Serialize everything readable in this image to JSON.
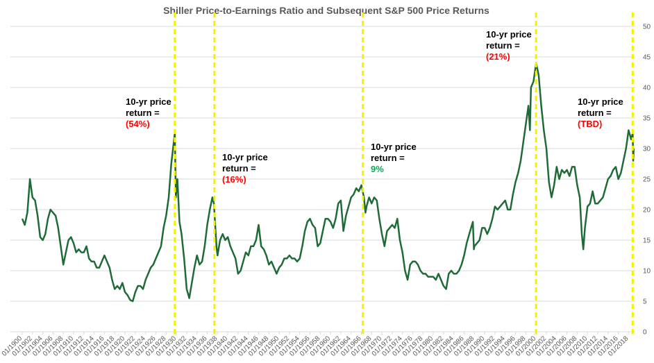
{
  "chart_data": {
    "type": "line",
    "title": "Shiller Price-to-Earnings Ratio and Subsequent S&P 500 Price Returns",
    "series": [
      {
        "name": "Shiller P/E",
        "color": "#1e6b38",
        "x": [
          1900,
          1900.5,
          1901,
          1901.5,
          1902,
          1902.5,
          1903,
          1903.5,
          1904,
          1904.5,
          1905,
          1905.5,
          1906,
          1906.5,
          1907,
          1907.5,
          1908,
          1908.5,
          1909,
          1909.5,
          1910,
          1910.5,
          1911,
          1911.5,
          1912,
          1912.5,
          1913,
          1913.5,
          1914,
          1914.5,
          1915,
          1915.5,
          1916,
          1916.5,
          1917,
          1917.5,
          1918,
          1918.5,
          1919,
          1919.5,
          1920,
          1920.5,
          1921,
          1921.5,
          1922,
          1922.5,
          1923,
          1923.5,
          1924,
          1924.5,
          1925,
          1925.5,
          1926,
          1926.5,
          1927,
          1927.5,
          1928,
          1928.5,
          1929,
          1929.7,
          1929.9,
          1930.2,
          1930.6,
          1931,
          1931.5,
          1932,
          1932.5,
          1933,
          1933.5,
          1934,
          1934.5,
          1935,
          1935.5,
          1936,
          1936.5,
          1937,
          1937.3,
          1937.8,
          1938,
          1938.5,
          1939,
          1939.5,
          1940,
          1940.5,
          1941,
          1941.5,
          1942,
          1942.5,
          1943,
          1943.5,
          1944,
          1944.5,
          1945,
          1945.5,
          1946,
          1946.5,
          1947,
          1947.5,
          1948,
          1948.5,
          1949,
          1949.5,
          1950,
          1950.5,
          1951,
          1951.5,
          1952,
          1952.5,
          1953,
          1953.5,
          1954,
          1954.5,
          1955,
          1955.5,
          1956,
          1956.5,
          1957,
          1957.5,
          1958,
          1958.5,
          1959,
          1959.5,
          1960,
          1960.5,
          1961,
          1961.5,
          1962,
          1962.5,
          1963,
          1963.5,
          1964,
          1964.5,
          1965,
          1965.5,
          1966,
          1966.5,
          1966.8,
          1967,
          1967.5,
          1968,
          1968.5,
          1969,
          1969.5,
          1970,
          1970.5,
          1971,
          1971.5,
          1972,
          1972.5,
          1973,
          1973.5,
          1974,
          1974.5,
          1975,
          1975.5,
          1976,
          1976.5,
          1977,
          1977.5,
          1978,
          1978.5,
          1979,
          1979.5,
          1980,
          1980.5,
          1981,
          1981.5,
          1982,
          1982.5,
          1983,
          1983.5,
          1984,
          1984.5,
          1985,
          1985.5,
          1986,
          1986.5,
          1987,
          1987.7,
          1987.9,
          1988,
          1988.5,
          1989,
          1989.5,
          1990,
          1990.5,
          1991,
          1991.5,
          1992,
          1992.5,
          1993,
          1993.5,
          1994,
          1994.5,
          1995,
          1995.5,
          1996,
          1996.5,
          1997,
          1997.5,
          1998,
          1998.5,
          1998.8,
          1999,
          1999.5,
          2000,
          2000.5,
          2001,
          2001.5,
          2002,
          2002.5,
          2003,
          2003.5,
          2004,
          2004.5,
          2005,
          2005.5,
          2006,
          2006.5,
          2007,
          2007.5,
          2008,
          2008.5,
          2008.9,
          2009.2,
          2009.5,
          2010,
          2010.5,
          2011,
          2011.5,
          2012,
          2012.5,
          2013,
          2013.5,
          2014,
          2014.5,
          2015,
          2015.5,
          2016,
          2016.5,
          2017,
          2017.5,
          2018,
          2018.5,
          2018.8,
          2018.9,
          2019
        ],
        "values": [
          18.5,
          17.5,
          19.5,
          25,
          22,
          21.5,
          19,
          15.5,
          15,
          16,
          18.5,
          20,
          19.5,
          19,
          17,
          14,
          11,
          13,
          15,
          15.5,
          14.5,
          13,
          13.5,
          13,
          13,
          14,
          12,
          11.5,
          11.5,
          10.5,
          10.5,
          11.5,
          12.5,
          11.5,
          10.5,
          8.5,
          7,
          7.5,
          7,
          8,
          6.5,
          6,
          5.2,
          5,
          6.5,
          7.5,
          7.5,
          7,
          8.5,
          9.5,
          10.5,
          11,
          12,
          13,
          14,
          17,
          19,
          22,
          27.5,
          32.5,
          22,
          25,
          18,
          16,
          12,
          7,
          5.5,
          8,
          10.5,
          12.5,
          11,
          11.5,
          14,
          17.5,
          20,
          22,
          21,
          14,
          12.5,
          15,
          16,
          15,
          15.5,
          14,
          13,
          12,
          9.5,
          10,
          11.5,
          13,
          12.5,
          14,
          14,
          15,
          17.5,
          14,
          13.5,
          12.5,
          11,
          11.5,
          10.5,
          9.5,
          10.5,
          11,
          12,
          12,
          12.5,
          12,
          12,
          11.5,
          12,
          14,
          16.5,
          18,
          18.5,
          17.5,
          17,
          14,
          14.5,
          16.5,
          18.5,
          18.5,
          18,
          17,
          18.5,
          21,
          21.5,
          16.5,
          19,
          20.5,
          22,
          22.5,
          23.5,
          23,
          24,
          22,
          19.5,
          20.5,
          22,
          21,
          22,
          21.5,
          18.5,
          16,
          14,
          16.5,
          17,
          17.5,
          17,
          18.5,
          15,
          13,
          10,
          8.5,
          11,
          11.5,
          11.5,
          11,
          10,
          9.5,
          9.5,
          9,
          9,
          9,
          8.5,
          9.5,
          8.5,
          7.5,
          7,
          9.5,
          10,
          9.5,
          9.5,
          10,
          11,
          12.5,
          14.5,
          16,
          18,
          13.5,
          14,
          14.5,
          15,
          17,
          17,
          16,
          17,
          18.5,
          20.5,
          20,
          20.5,
          21,
          21.5,
          20,
          20,
          22.5,
          24.5,
          26,
          28,
          31,
          34,
          37,
          33,
          40,
          41,
          44,
          42,
          37,
          33,
          30,
          24.5,
          22,
          24,
          27,
          25,
          26.5,
          26,
          26.5,
          25.5,
          27,
          27,
          24,
          22,
          16,
          13.5,
          17,
          20.5,
          21,
          23,
          21,
          21,
          21.5,
          22,
          23.5,
          25,
          25.5,
          26.5,
          27,
          25,
          26,
          28,
          30,
          33,
          31.5,
          32.5,
          28,
          30
        ]
      }
    ],
    "xlim": [
      1897.7,
      2019.3
    ],
    "xticks": [
      {
        "value": 1900,
        "label": "01/1900"
      },
      {
        "value": 1902,
        "label": "01/1902"
      },
      {
        "value": 1904,
        "label": "01/1904"
      },
      {
        "value": 1906,
        "label": "01/1906"
      },
      {
        "value": 1908,
        "label": "01/1908"
      },
      {
        "value": 1910,
        "label": "01/1910"
      },
      {
        "value": 1912,
        "label": "01/1912"
      },
      {
        "value": 1914,
        "label": "01/1914"
      },
      {
        "value": 1916,
        "label": "01/1916"
      },
      {
        "value": 1918,
        "label": "01/1918"
      },
      {
        "value": 1920,
        "label": "01/1920"
      },
      {
        "value": 1922,
        "label": "01/1922"
      },
      {
        "value": 1924,
        "label": "01/1924"
      },
      {
        "value": 1926,
        "label": "01/1926"
      },
      {
        "value": 1928,
        "label": "01/1928"
      },
      {
        "value": 1930,
        "label": "01/1930"
      },
      {
        "value": 1932,
        "label": "01/1932"
      },
      {
        "value": 1934,
        "label": "01/1934"
      },
      {
        "value": 1936,
        "label": "01/1936"
      },
      {
        "value": 1938,
        "label": "01/1938"
      },
      {
        "value": 1940,
        "label": "01/1940"
      },
      {
        "value": 1942,
        "label": "01/1942"
      },
      {
        "value": 1944,
        "label": "01/1944"
      },
      {
        "value": 1946,
        "label": "01/1946"
      },
      {
        "value": 1948,
        "label": "01/1948"
      },
      {
        "value": 1950,
        "label": "01/1950"
      },
      {
        "value": 1952,
        "label": "01/1952"
      },
      {
        "value": 1954,
        "label": "01/1954"
      },
      {
        "value": 1956,
        "label": "01/1956"
      },
      {
        "value": 1958,
        "label": "01/1958"
      },
      {
        "value": 1960,
        "label": "01/1960"
      },
      {
        "value": 1962,
        "label": "01/1962"
      },
      {
        "value": 1964,
        "label": "01/1964"
      },
      {
        "value": 1966,
        "label": "01/1966"
      },
      {
        "value": 1968,
        "label": "01/1968"
      },
      {
        "value": 1970,
        "label": "01/1970"
      },
      {
        "value": 1972,
        "label": "01/1972"
      },
      {
        "value": 1974,
        "label": "01/1974"
      },
      {
        "value": 1976,
        "label": "01/1976"
      },
      {
        "value": 1978,
        "label": "01/1978"
      },
      {
        "value": 1980,
        "label": "01/1980"
      },
      {
        "value": 1982,
        "label": "01/1982"
      },
      {
        "value": 1984,
        "label": "01/1984"
      },
      {
        "value": 1986,
        "label": "01/1986"
      },
      {
        "value": 1988,
        "label": "01/1988"
      },
      {
        "value": 1990,
        "label": "01/1990"
      },
      {
        "value": 1992,
        "label": "01/1992"
      },
      {
        "value": 1994,
        "label": "01/1994"
      },
      {
        "value": 1996,
        "label": "01/1996"
      },
      {
        "value": 1998,
        "label": "01/1998"
      },
      {
        "value": 2000,
        "label": "01/2000"
      },
      {
        "value": 2002,
        "label": "01/2002"
      },
      {
        "value": 2004,
        "label": "01/2004"
      },
      {
        "value": 2006,
        "label": "01/2006"
      },
      {
        "value": 2008,
        "label": "01/2008"
      },
      {
        "value": 2010,
        "label": "01/2010"
      },
      {
        "value": 2012,
        "label": "01/2012"
      },
      {
        "value": 2014,
        "label": "01/2014"
      },
      {
        "value": 2016,
        "label": "01/2016"
      },
      {
        "value": 2018,
        "label": "01/2018"
      }
    ],
    "ylim": [
      0,
      50
    ],
    "yticks": [
      0,
      5,
      10,
      15,
      20,
      25,
      30,
      35,
      40,
      45,
      50
    ],
    "grid": true,
    "markers": {
      "color": "#f2f200",
      "x": [
        1929.7,
        1937.4,
        1966.3,
        2000,
        2018.8
      ]
    },
    "annotations": [
      {
        "lines": [
          "10-yr price",
          "return ="
        ],
        "result": "(54%)",
        "color": "#ff0000"
      },
      {
        "lines": [
          "10-yr price",
          "return ="
        ],
        "result": "(16%)",
        "color": "#ff0000"
      },
      {
        "lines": [
          "10-yr price",
          "return ="
        ],
        "result": "9%",
        "color": "#00b050"
      },
      {
        "lines": [
          "10-yr price",
          "return ="
        ],
        "result": "(21%)",
        "color": "#ff0000"
      },
      {
        "lines": [
          "10-yr price",
          "return ="
        ],
        "result": "(TBD)",
        "color": "#ff0000"
      }
    ]
  }
}
